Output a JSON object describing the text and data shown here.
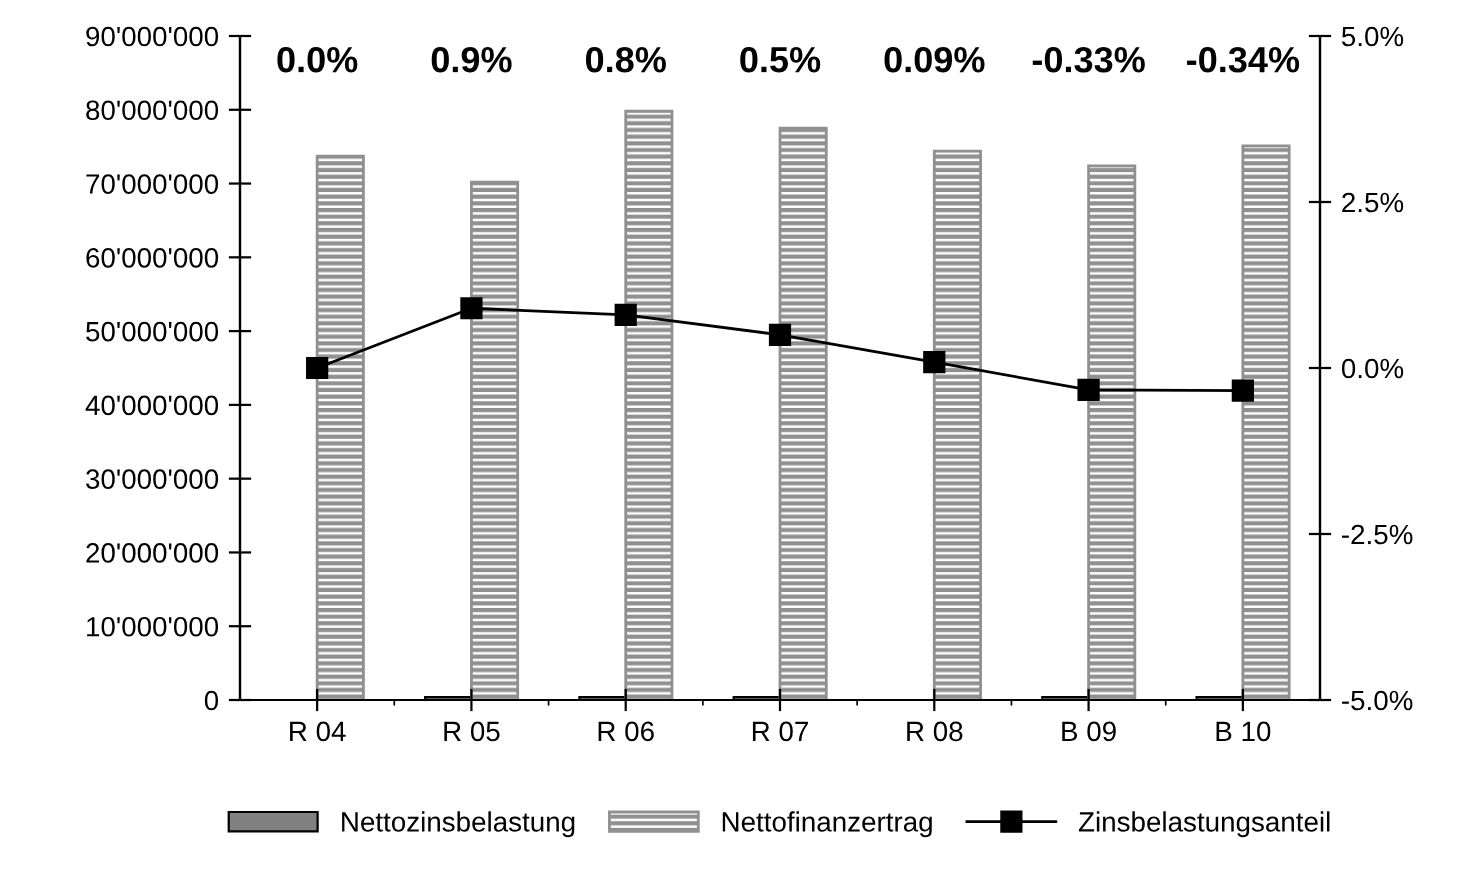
{
  "chart_data": {
    "type": "bar",
    "categories": [
      "R 04",
      "R 05",
      "R 06",
      "R 07",
      "R 08",
      "B 09",
      "B 10"
    ],
    "series": [
      {
        "name": "Nettozinsbelastung",
        "color": "#808080",
        "values": [
          null,
          400000,
          400000,
          400000,
          null,
          400000,
          400000
        ]
      },
      {
        "name": "Nettofinanzertrag",
        "color": "#909090",
        "values": [
          73700000,
          70200000,
          79800000,
          77500000,
          74400000,
          72400000,
          75100000
        ]
      },
      {
        "name": "Zinsbelastungsanteil",
        "type": "line",
        "axis": "y2",
        "color": "#000000",
        "marker": "square",
        "values": [
          0.0,
          0.9,
          0.8,
          0.5,
          0.09,
          -0.33,
          -0.34
        ]
      }
    ],
    "annotations": [
      "0.0%",
      "0.9%",
      "0.8%",
      "0.5%",
      "0.09%",
      "-0.33%",
      "-0.34%"
    ],
    "ylim": [
      0,
      90000000
    ],
    "yticks": [
      0,
      {
        "value": 10000000,
        "label": "10'000'000"
      },
      {
        "value": 20000000,
        "label": "20'000'000"
      },
      {
        "value": 30000000,
        "label": "30'000'000"
      },
      {
        "value": 40000000,
        "label": "40'000'000"
      },
      {
        "value": 50000000,
        "label": "50'000'000"
      },
      {
        "value": 60000000,
        "label": "60'000'000"
      },
      {
        "value": 70000000,
        "label": "70'000'000"
      },
      {
        "value": 80000000,
        "label": "80'000'000"
      },
      {
        "value": 90000000,
        "label": "90'000'000"
      }
    ],
    "y2lim": [
      -5,
      5
    ],
    "y2ticks": [
      {
        "value": -5,
        "label": "-5.0%"
      },
      {
        "value": -2.5,
        "label": "-2.5%"
      },
      {
        "value": 0,
        "label": "0.0%"
      },
      {
        "value": 2.5,
        "label": "2.5%"
      },
      {
        "value": 5,
        "label": "5.0%"
      }
    ],
    "grid": false,
    "legend": "bottom"
  }
}
